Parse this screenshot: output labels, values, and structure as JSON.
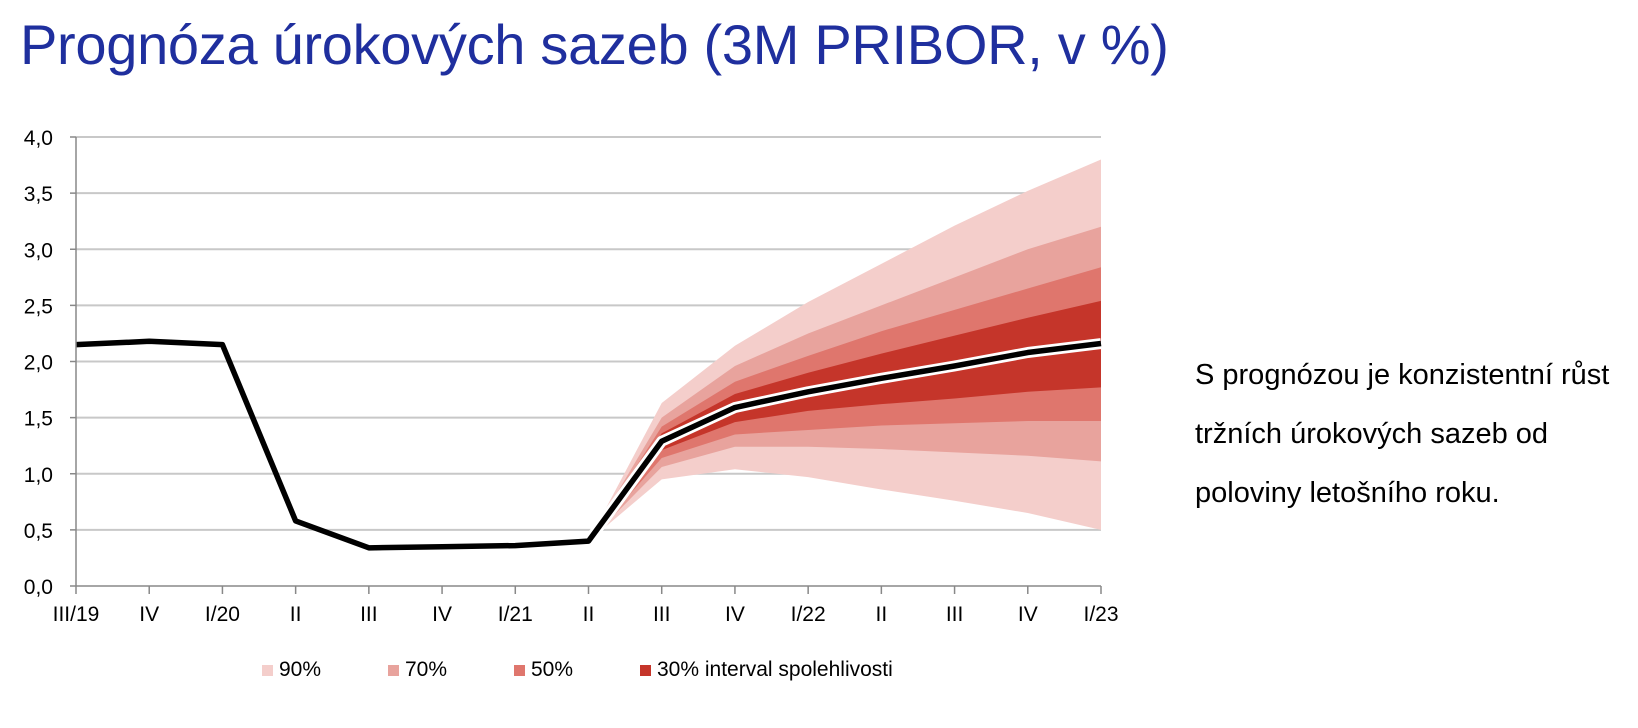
{
  "title": "Prognóza úrokových sazeb (3M PRIBOR, v %)",
  "side_text": "S prognózou je konzistentní růst tržních úrokových sazeb od poloviny letošního roku.",
  "chart_data": {
    "type": "area",
    "categories": [
      "III/19",
      "IV",
      "I/20",
      "II",
      "III",
      "IV",
      "I/21",
      "II",
      "III",
      "IV",
      "I/22",
      "II",
      "III",
      "IV",
      "I/23"
    ],
    "ylim": [
      0,
      4
    ],
    "yticks": [
      "0,0",
      "0,5",
      "1,0",
      "1,5",
      "2,0",
      "2,5",
      "3,0",
      "3,5",
      "4,0"
    ],
    "grid": true,
    "legend_position": "bottom",
    "colors": {
      "line": "#000000",
      "grid": "#c8c8c8",
      "axis": "#888888"
    },
    "series": [
      {
        "values": [
          2.15,
          2.18,
          2.15,
          0.58,
          0.34,
          0.35,
          0.36,
          0.4,
          1.29,
          1.59,
          1.73,
          1.85,
          1.96,
          2.08,
          2.16
        ]
      }
    ],
    "fan_start_index": 7,
    "bands": [
      {
        "name": "90%",
        "color": "#f4cecb",
        "lower": [
          0.4,
          0.95,
          1.04,
          0.97,
          0.86,
          0.76,
          0.65,
          0.5
        ],
        "upper": [
          0.4,
          1.63,
          2.14,
          2.53,
          2.87,
          3.21,
          3.52,
          3.8
        ]
      },
      {
        "name": "70%",
        "color": "#e8a39d",
        "lower": [
          0.4,
          1.06,
          1.24,
          1.24,
          1.22,
          1.19,
          1.16,
          1.11
        ],
        "upper": [
          0.4,
          1.5,
          1.96,
          2.25,
          2.5,
          2.75,
          3.0,
          3.2
        ]
      },
      {
        "name": "50%",
        "color": "#df766d",
        "lower": [
          0.4,
          1.14,
          1.35,
          1.39,
          1.43,
          1.45,
          1.47,
          1.47
        ],
        "upper": [
          0.4,
          1.42,
          1.82,
          2.05,
          2.27,
          2.46,
          2.65,
          2.84
        ]
      },
      {
        "name": "30% interval spolehlivosti",
        "color": "#c5352a",
        "lower": [
          0.4,
          1.21,
          1.46,
          1.56,
          1.62,
          1.67,
          1.73,
          1.77
        ],
        "upper": [
          0.4,
          1.36,
          1.71,
          1.9,
          2.07,
          2.23,
          2.39,
          2.54
        ]
      }
    ]
  }
}
